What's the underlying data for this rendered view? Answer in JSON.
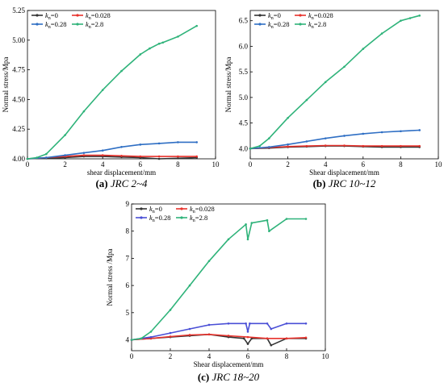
{
  "chart_data": [
    {
      "type": "line",
      "caption_letter": "(a)",
      "caption_text": "JRC 2~4",
      "xlabel": "shear displacement/mm",
      "ylabel": "Normal stress/Mpa",
      "xlim": [
        0,
        10
      ],
      "ylim": [
        4.0,
        5.25
      ],
      "xticks": [
        0,
        2,
        4,
        6,
        8,
        10
      ],
      "xtick_labels": [
        "0",
        "2",
        "4",
        "6",
        "8",
        "10"
      ],
      "yticks": [
        4.0,
        4.25,
        4.5,
        4.75,
        5.0,
        5.25
      ],
      "ytick_labels": [
        "4.00",
        "4.25",
        "4.50",
        "4.75",
        "5.00",
        "5.25"
      ],
      "legend_placement": "top-left",
      "series": [
        {
          "name": "kn=0",
          "sub": "n",
          "label_pre": "k",
          "label_post": "=0",
          "color": "#333333",
          "x": [
            0,
            1,
            2,
            3,
            4,
            5,
            6,
            7,
            8,
            9
          ],
          "y": [
            4.0,
            4.005,
            4.01,
            4.02,
            4.02,
            4.015,
            4.01,
            4.0,
            4.005,
            4.01
          ]
        },
        {
          "name": "kn=0.028",
          "label_pre": "k",
          "sub": "n",
          "label_post": "=0.028",
          "color": "#e8322c",
          "x": [
            0,
            1,
            2,
            3,
            4,
            5,
            6,
            7,
            8,
            9
          ],
          "y": [
            4.0,
            4.01,
            4.02,
            4.03,
            4.03,
            4.025,
            4.02,
            4.02,
            4.02,
            4.02
          ]
        },
        {
          "name": "kn=0.28",
          "label_pre": "k",
          "sub": "n",
          "label_post": "=0.28",
          "color": "#2f6fc4",
          "x": [
            0,
            1,
            2,
            3,
            4,
            5,
            6,
            7,
            8,
            9
          ],
          "y": [
            4.0,
            4.01,
            4.03,
            4.05,
            4.07,
            4.1,
            4.12,
            4.13,
            4.14,
            4.14
          ]
        },
        {
          "name": "kn=2.8",
          "label_pre": "k",
          "sub": "n",
          "label_post": "=2.8",
          "color": "#2fb37a",
          "x": [
            0,
            0.5,
            1,
            2,
            3,
            4,
            5,
            6,
            6.5,
            7,
            7.2,
            8,
            9
          ],
          "y": [
            4.0,
            4.01,
            4.04,
            4.2,
            4.4,
            4.58,
            4.74,
            4.88,
            4.93,
            4.97,
            4.98,
            5.03,
            5.12
          ]
        }
      ]
    },
    {
      "type": "line",
      "caption_letter": "(b)",
      "caption_text": "JRC 10~12",
      "xlabel": "Shear displacement/mm",
      "ylabel": "Normal stress/Mpa",
      "xlim": [
        0,
        10
      ],
      "ylim": [
        3.8,
        6.7
      ],
      "xticks": [
        0,
        2,
        4,
        6,
        8,
        10
      ],
      "xtick_labels": [
        "0",
        "2",
        "4",
        "6",
        "8",
        "10"
      ],
      "yticks": [
        4.0,
        4.5,
        5.0,
        5.5,
        6.0,
        6.5
      ],
      "ytick_labels": [
        "4.0",
        "4.5",
        "5.0",
        "5.5",
        "6.0",
        "6.5"
      ],
      "legend_placement": "top-left",
      "series": [
        {
          "name": "kn=0",
          "label_pre": "k",
          "sub": "n",
          "label_post": "=0",
          "color": "#333333",
          "x": [
            0,
            1,
            2,
            3,
            4,
            5,
            6,
            7,
            8,
            9
          ],
          "y": [
            4.0,
            4.01,
            4.03,
            4.04,
            4.05,
            4.05,
            4.04,
            4.03,
            4.03,
            4.03
          ]
        },
        {
          "name": "kn=0.028",
          "label_pre": "k",
          "sub": "n",
          "label_post": "=0.028",
          "color": "#e8322c",
          "x": [
            0,
            1,
            2,
            3,
            4,
            5,
            6,
            7,
            8,
            9
          ],
          "y": [
            4.0,
            4.02,
            4.04,
            4.05,
            4.06,
            4.06,
            4.05,
            4.05,
            4.05,
            4.05
          ]
        },
        {
          "name": "kn=0.28",
          "label_pre": "k",
          "sub": "n",
          "label_post": "=0.28",
          "color": "#2f6fc4",
          "x": [
            0,
            1,
            2,
            3,
            4,
            5,
            6,
            7,
            8,
            9
          ],
          "y": [
            4.0,
            4.03,
            4.08,
            4.14,
            4.2,
            4.25,
            4.29,
            4.32,
            4.34,
            4.36
          ]
        },
        {
          "name": "kn=2.8",
          "label_pre": "k",
          "sub": "n",
          "label_post": "=2.8",
          "color": "#2fb37a",
          "x": [
            0,
            0.5,
            1,
            2,
            3,
            4,
            5,
            6,
            7,
            8,
            8.5,
            9
          ],
          "y": [
            4.0,
            4.05,
            4.2,
            4.6,
            4.95,
            5.3,
            5.6,
            5.95,
            6.25,
            6.5,
            6.55,
            6.6
          ]
        }
      ]
    },
    {
      "type": "line",
      "caption_letter": "(c)",
      "caption_text": "JRC 18~20",
      "xlabel": "Shear displacement/mm",
      "ylabel": "Normal stress /Mpa",
      "xlim": [
        0,
        10
      ],
      "ylim": [
        3.6,
        9.0
      ],
      "xticks": [
        0,
        2,
        4,
        6,
        8,
        10
      ],
      "xtick_labels": [
        "0",
        "2",
        "4",
        "6",
        "8",
        "10"
      ],
      "yticks": [
        4,
        5,
        6,
        7,
        8,
        9
      ],
      "ytick_labels": [
        "4",
        "5",
        "6",
        "7",
        "8",
        "9"
      ],
      "legend_placement": "top-left",
      "series": [
        {
          "name": "kn=0",
          "label_pre": "k",
          "sub": "n",
          "label_post": "=0",
          "color": "#333333",
          "x": [
            0,
            1,
            2,
            3,
            4,
            5,
            5.8,
            6,
            6.2,
            7,
            7.2,
            8,
            9
          ],
          "y": [
            4.0,
            4.05,
            4.1,
            4.15,
            4.2,
            4.1,
            4.05,
            3.85,
            4.05,
            4.05,
            3.8,
            4.05,
            4.05
          ]
        },
        {
          "name": "kn=0.028",
          "label_pre": "k",
          "sub": "n",
          "label_post": "=0.028",
          "color": "#e8322c",
          "x": [
            0,
            1,
            2,
            3,
            4,
            5,
            6,
            7,
            8,
            9
          ],
          "y": [
            4.0,
            4.05,
            4.12,
            4.18,
            4.2,
            4.15,
            4.1,
            4.05,
            4.05,
            4.08
          ]
        },
        {
          "name": "kn=0.28",
          "label_pre": "k",
          "sub": "n",
          "label_post": "=0.28",
          "color": "#4a4fd6",
          "x": [
            0,
            1,
            2,
            3,
            4,
            5,
            5.9,
            6,
            6.1,
            7,
            7.2,
            8,
            9
          ],
          "y": [
            4.0,
            4.1,
            4.25,
            4.4,
            4.55,
            4.6,
            4.6,
            4.3,
            4.6,
            4.6,
            4.4,
            4.6,
            4.6
          ]
        },
        {
          "name": "kn=2.8",
          "label_pre": "k",
          "sub": "n",
          "label_post": "=2.8",
          "color": "#2fb37a",
          "x": [
            0,
            0.5,
            1,
            2,
            3,
            4,
            5,
            5.9,
            6,
            6.2,
            7,
            7.1,
            8,
            9
          ],
          "y": [
            4.0,
            4.05,
            4.3,
            5.1,
            6.0,
            6.9,
            7.7,
            8.25,
            7.7,
            8.3,
            8.4,
            8.0,
            8.45,
            8.45
          ]
        }
      ]
    }
  ]
}
